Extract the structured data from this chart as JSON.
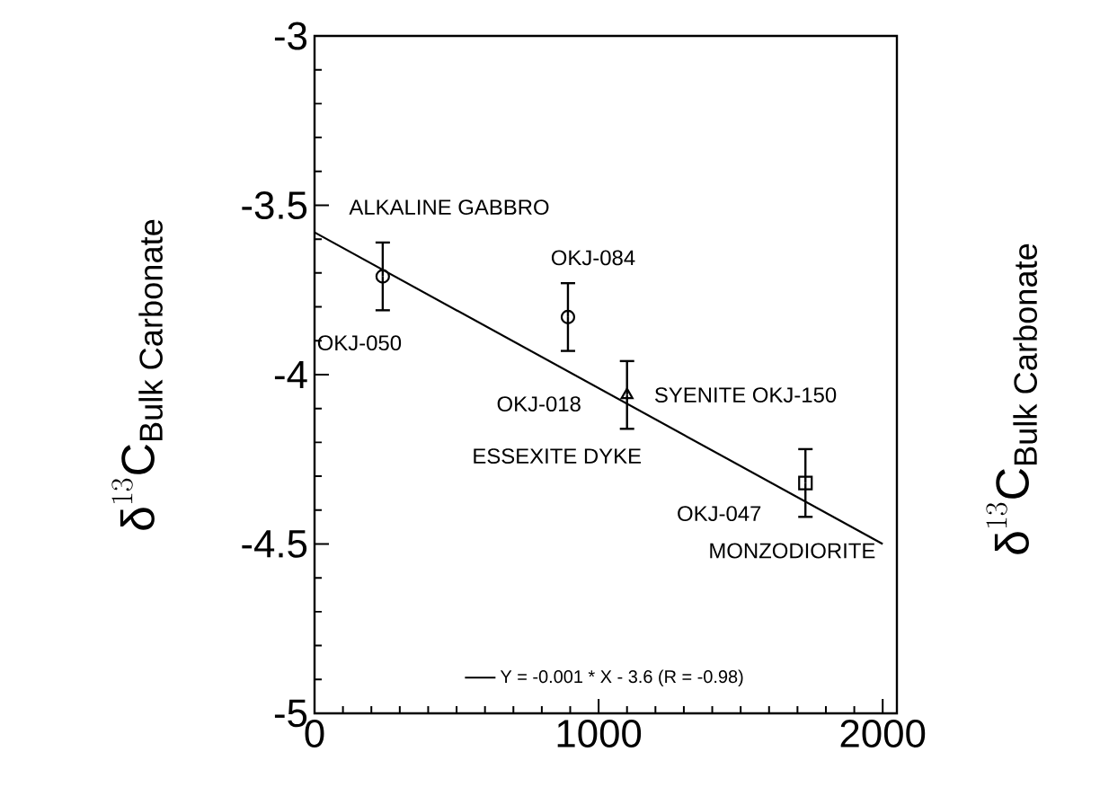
{
  "chart_data": {
    "type": "scatter",
    "ylabel": "\\text{δ}^{13}\\text{C}_{\\text{Bulk Carbonate}}",
    "y2label": "\\text{δ}^{13}\\text{C}_{\\text{Bulk Carbonate}}",
    "xlim": [
      0,
      2050
    ],
    "ylim": [
      -5,
      -3
    ],
    "xticks": [
      0,
      1000,
      2000
    ],
    "yticks": [
      -5,
      -4.5,
      -4,
      -3.5,
      -3
    ],
    "series": [
      {
        "marker": "circle",
        "color": "#000000",
        "x": [
          240
        ],
        "values": [
          -3.71
        ],
        "errors": [
          0.1
        ]
      },
      {
        "marker": "circle",
        "color": "#000000",
        "x": [
          892
        ],
        "values": [
          -3.83
        ],
        "errors": [
          0.1
        ]
      },
      {
        "marker": "triangle",
        "color": "#000000",
        "x": [
          1100
        ],
        "values": [
          -4.06
        ],
        "errors": [
          0.1
        ]
      },
      {
        "marker": "square",
        "color": "#000000",
        "x": [
          1728
        ],
        "values": [
          -4.32
        ],
        "errors": [
          0.1
        ]
      },
      {
        "type": "line",
        "name": "Y = -0.001 * X - 3.6 (R = -0.98)",
        "color": "#000000",
        "marker": "none",
        "x": [
          0,
          2000
        ],
        "values": [
          -3.58,
          -4.5
        ]
      }
    ],
    "annotations": [
      {
        "text": "ALKALINE GABBRO",
        "x": 0,
        "y": -3.58
      },
      {
        "text": "OKJ-050",
        "x": 240,
        "y": -3.71
      },
      {
        "text": "OKJ-084",
        "x": 892,
        "y": -3.83
      },
      {
        "text": "OKJ-018",
        "x": 1100,
        "y": -4.06
      },
      {
        "text": "ESSEXITE DYKE",
        "x": 1100,
        "y": -4.06
      },
      "SYENITE OKJ-150",
      {
        "text": "OKJ-047",
        "x": 1728,
        "y": -4.32
      },
      "MONZODIORITE"
    ],
    "legend": "bottom"
  }
}
